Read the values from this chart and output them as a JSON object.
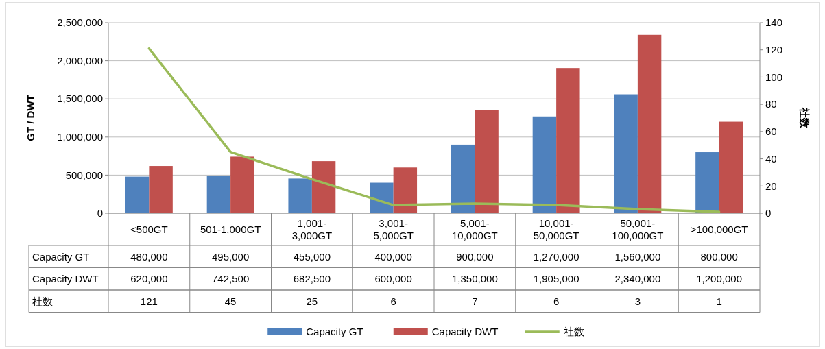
{
  "chart_data": {
    "type": "bar",
    "ylabel": "GT / DWT",
    "y2label": "社数",
    "categories": [
      "<500GT",
      "501-1,000GT",
      "1,001-3,000GT",
      "3,001-5,000GT",
      "5,001-10,000GT",
      "10,001-50,000GT",
      "50,001-100,000GT",
      ">100,000GT"
    ],
    "series": [
      {
        "name": "Capacity GT",
        "color": "#4f81bd",
        "values": [
          480000,
          495000,
          455000,
          400000,
          900000,
          1270000,
          1560000,
          800000
        ],
        "value_labels": [
          "480,000",
          "495,000",
          "455,000",
          "400,000",
          "900,000",
          "1,270,000",
          "1,560,000",
          "800,000"
        ]
      },
      {
        "name": "Capacity DWT",
        "color": "#c0504d",
        "values": [
          620000,
          742500,
          682500,
          600000,
          1350000,
          1905000,
          2340000,
          1200000
        ],
        "value_labels": [
          "620,000",
          "742,500",
          "682,500",
          "600,000",
          "1,350,000",
          "1,905,000",
          "2,340,000",
          "1,200,000"
        ]
      },
      {
        "name": "社数",
        "type": "line",
        "axis": "y2",
        "color": "#9bbb59",
        "values": [
          121,
          45,
          25,
          6,
          7,
          6,
          3,
          1
        ],
        "value_labels": [
          "121",
          "45",
          "25",
          "6",
          "7",
          "6",
          "3",
          "1"
        ]
      }
    ],
    "ylim": [
      0,
      2500000
    ],
    "yticks": [
      {
        "value": 0,
        "label": "0"
      },
      {
        "value": 500000,
        "label": "500,000"
      },
      {
        "value": 1000000,
        "label": "1,000,000"
      },
      {
        "value": 1500000,
        "label": "1,500,000"
      },
      {
        "value": 2000000,
        "label": "2,000,000"
      },
      {
        "value": 2500000,
        "label": "2,500,000"
      }
    ],
    "y2lim": [
      0,
      140
    ],
    "y2ticks": [
      0,
      20,
      40,
      60,
      80,
      100,
      120,
      140
    ],
    "grid": "y",
    "legend": "bottom",
    "marker": "none",
    "line_style": "solid"
  }
}
